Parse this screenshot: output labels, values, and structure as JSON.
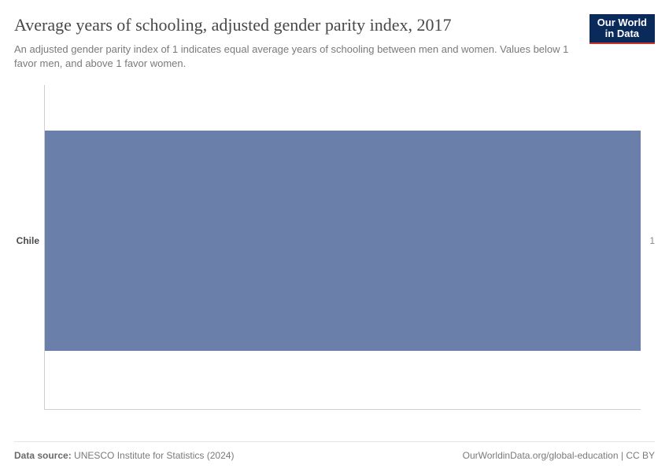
{
  "header": {
    "title": "Average years of schooling, adjusted gender parity index, 2017",
    "subtitle": "An adjusted gender parity index of 1 indicates equal average years of schooling between men and women. Values below 1 favor men, and above 1 favor women.",
    "logo_line1": "Our World",
    "logo_line2": "in Data",
    "logo_bg": "#0a2a5c",
    "logo_accent": "#c8322c",
    "title_fontsize": 22,
    "subtitle_fontsize": 13
  },
  "chart": {
    "type": "bar-horizontal",
    "x_min": 0,
    "x_max": 1,
    "background_color": "#ffffff",
    "axis_color": "#cfcfcf",
    "bar_color": "#6a80ab",
    "category_label_color": "#4a4a4a",
    "value_label_color": "#8a8a8a",
    "category_fontsize": 12,
    "value_fontsize": 12,
    "series": [
      {
        "category": "Chile",
        "value": 1,
        "value_label": "1"
      }
    ],
    "bar_row_top_pct": 14,
    "bar_row_height_pct": 68
  },
  "footer": {
    "source_label": "Data source:",
    "source_text": "UNESCO Institute for Statistics (2024)",
    "attribution": "OurWorldinData.org/global-education | CC BY"
  }
}
